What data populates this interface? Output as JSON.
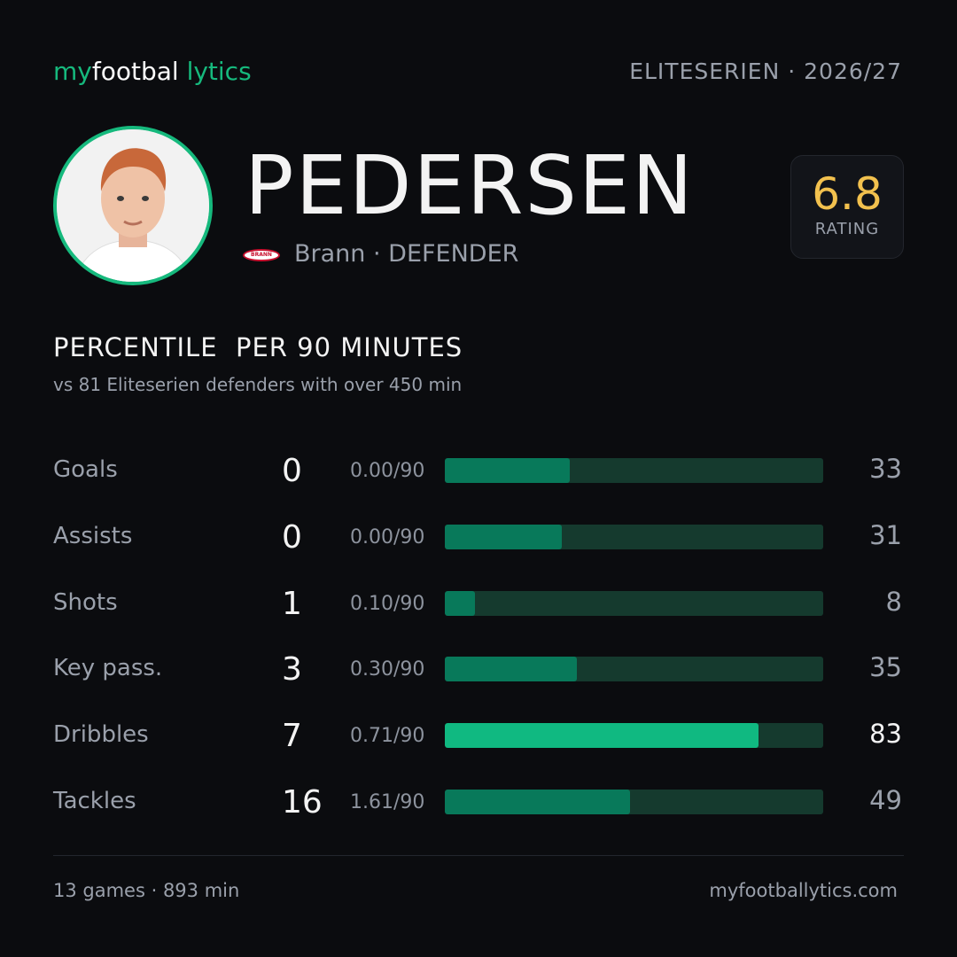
{
  "header": {
    "logo": [
      "my",
      "footbal",
      "lytics"
    ],
    "league": "ELITESERIEN",
    "season": "· 2026/27"
  },
  "player": {
    "name": "PEDERSEN",
    "crest": "BRANN",
    "club": "Brann",
    "position": "· DEFENDER",
    "rating": 6.8,
    "rating_label": "RATING"
  },
  "section": {
    "title": "PERCENTILE  PER 90 MINUTES",
    "subtitle": "vs 81 Eliteserien defenders with over 450 min"
  },
  "stats": {
    "rows": [
      {
        "label": "Goals",
        "total": 0,
        "per90": "0.00/90",
        "percentile": 33,
        "color": "#08795a"
      },
      {
        "label": "Assists",
        "total": 0,
        "per90": "0.00/90",
        "percentile": 31,
        "color": "#08795a"
      },
      {
        "label": "Shots",
        "total": 1,
        "per90": "0.10/90",
        "percentile": 8,
        "color": "#08795a"
      },
      {
        "label": "Key pass.",
        "total": 3,
        "per90": "0.30/90",
        "percentile": 35,
        "color": "#08795a"
      },
      {
        "label": "Dribbles",
        "total": 7,
        "per90": "0.71/90",
        "percentile": 83,
        "color": "#10b981"
      },
      {
        "label": "Tackles",
        "total": 16,
        "per90": "1.61/90",
        "percentile": 49,
        "color": "#08795a"
      }
    ]
  },
  "footer": {
    "summary": "13 games · 893 min",
    "site": "myfootballytics.com"
  }
}
